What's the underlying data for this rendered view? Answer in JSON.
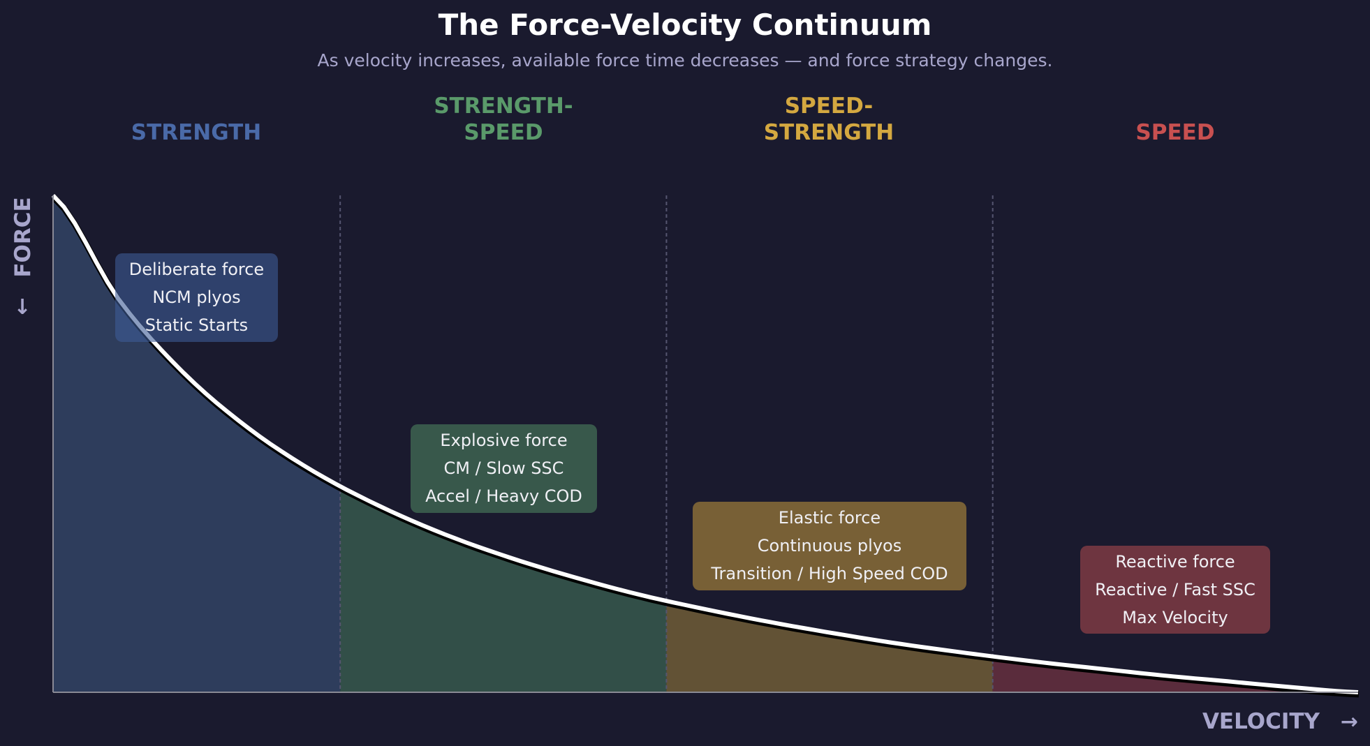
{
  "colors": {
    "background": "#1a1a2e",
    "curve": "#ffffff",
    "axis_label": "#a8a6cc",
    "strength": "#4a6aa8",
    "strength_speed": "#5a9a6a",
    "speed_strength": "#d4a840",
    "speed": "#c85050"
  },
  "chart_data": {
    "type": "area",
    "title": "The Force-Velocity Continuum",
    "subtitle": "As velocity increases, available force time decreases — and force strategy changes.",
    "xlabel": "VELOCITY",
    "xlabel_arrow": "→",
    "ylabel": "FORCE",
    "ylabel_arrow": "↓",
    "xlim": [
      0,
      1
    ],
    "ylim": [
      0,
      1
    ],
    "grid": false,
    "ticks": false,
    "x": [
      0,
      0.05,
      0.1,
      0.15,
      0.2,
      0.25,
      0.3,
      0.35,
      0.4,
      0.45,
      0.5,
      0.55,
      0.6,
      0.65,
      0.7,
      0.75,
      0.8,
      0.85,
      0.9,
      0.95,
      1
    ],
    "y": [
      1,
      0.792,
      0.643,
      0.531,
      0.444,
      0.375,
      0.318,
      0.271,
      0.231,
      0.196,
      0.167,
      0.141,
      0.118,
      0.097,
      0.079,
      0.0625,
      0.048,
      0.034,
      0.022,
      0.01,
      0
    ],
    "zones": [
      {
        "label_lines": [
          "STRENGTH"
        ],
        "color": "#4a6aa8",
        "fill": "#2e3d5c",
        "box_color": "rgba(62,92,150,0.6)",
        "start": 0,
        "end": 0.22,
        "box_lines": [
          "Deliberate force",
          "NCM plyos",
          "Static Starts"
        ]
      },
      {
        "label_lines": [
          "STRENGTH-",
          "SPEED"
        ],
        "color": "#5a9a6a",
        "fill": "#324f48",
        "box_color": "rgba(62,100,80,0.85)",
        "start": 0.22,
        "end": 0.47,
        "box_lines": [
          "Explosive force",
          "CM / Slow SSC",
          "Accel / Heavy COD"
        ]
      },
      {
        "label_lines": [
          "SPEED-",
          "STRENGTH"
        ],
        "color": "#d4a840",
        "fill": "#625235",
        "box_color": "rgba(125,100,55,0.95)",
        "start": 0.47,
        "end": 0.72,
        "box_lines": [
          "Elastic force",
          "Continuous plyos",
          "Transition / High Speed COD"
        ]
      },
      {
        "label_lines": [
          "SPEED"
        ],
        "color": "#c85050",
        "fill": "#5a2c3c",
        "box_color": "rgba(115,55,65,0.95)",
        "start": 0.72,
        "end": 1,
        "box_lines": [
          "Reactive force",
          "Reactive / Fast SSC",
          "Max Velocity"
        ]
      }
    ]
  }
}
